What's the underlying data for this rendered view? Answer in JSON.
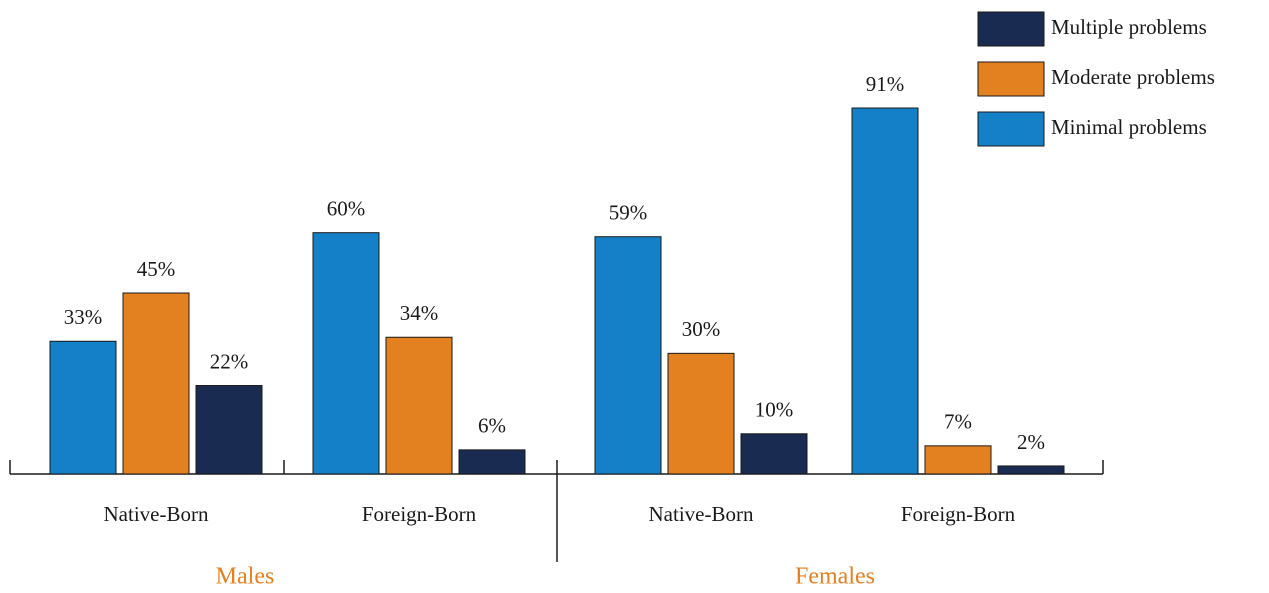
{
  "chart_data": {
    "type": "bar",
    "categories": [
      "Native-Born",
      "Foreign-Born",
      "Native-Born",
      "Foreign-Born"
    ],
    "groups": [
      "Males",
      "Females"
    ],
    "series": [
      {
        "name": "Minimal problems",
        "color": "#1380c8",
        "values": [
          33,
          60,
          59,
          91
        ],
        "value_labels": [
          "33%",
          "60%",
          "59%",
          "91%"
        ]
      },
      {
        "name": "Moderate problems",
        "color": "#e38120",
        "values": [
          45,
          34,
          30,
          7
        ],
        "value_labels": [
          "45%",
          "34%",
          "30%",
          "7%"
        ]
      },
      {
        "name": "Multiple problems",
        "color": "#1a2b52",
        "values": [
          22,
          6,
          10,
          2
        ],
        "value_labels": [
          "22%",
          "6%",
          "10%",
          "2%"
        ]
      }
    ],
    "legend": "upper right"
  }
}
